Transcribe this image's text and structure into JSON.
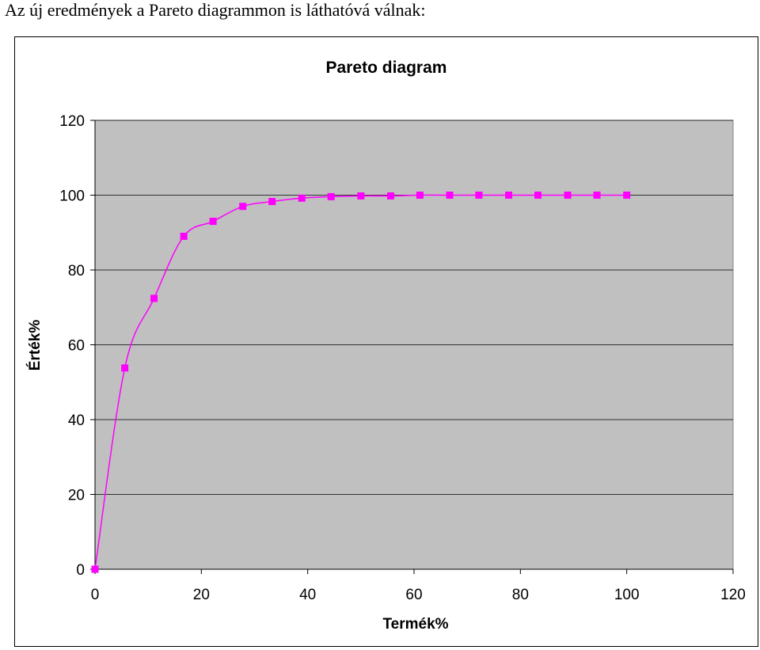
{
  "page": {
    "caption": "Az új eredmények a Pareto diagrammon is láthatóvá válnak:"
  },
  "chart_data": {
    "type": "line",
    "title": "Pareto diagram",
    "xlabel": "Termék%",
    "ylabel": "Érték%",
    "xlim": [
      0,
      120
    ],
    "ylim": [
      0,
      120
    ],
    "x_ticks": [
      "0",
      "20",
      "40",
      "60",
      "80",
      "100",
      "120"
    ],
    "y_ticks": [
      "0",
      "20",
      "40",
      "60",
      "80",
      "100",
      "120"
    ],
    "grid": "horizontal",
    "plot_background": "#c0c0c0",
    "series": [
      {
        "color": "#ff00ff",
        "marker": "square",
        "smooth": true,
        "x": [
          0,
          5.6,
          11.1,
          16.7,
          22.2,
          27.8,
          33.3,
          38.9,
          44.4,
          50,
          55.6,
          61.1,
          66.7,
          72.2,
          77.8,
          83.3,
          88.9,
          94.4,
          100
        ],
        "y": [
          0,
          53.8,
          72.4,
          89,
          93,
          97,
          98.3,
          99.2,
          99.6,
          99.8,
          99.8,
          100,
          100,
          100,
          100,
          100,
          100,
          100,
          100
        ]
      }
    ]
  }
}
